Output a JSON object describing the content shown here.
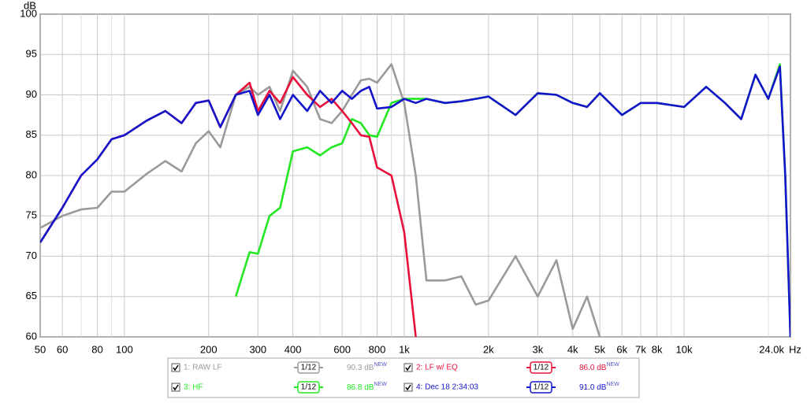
{
  "chart_data": {
    "type": "line",
    "y_label": "dB",
    "x_unit": "Hz",
    "xscale": "log",
    "grid": true,
    "xlim": [
      50,
      24000
    ],
    "ylim": [
      60,
      100
    ],
    "yticks": [
      60,
      65,
      70,
      75,
      80,
      85,
      90,
      95,
      100
    ],
    "xticks": [
      50,
      60,
      80,
      100,
      200,
      300,
      400,
      600,
      800,
      {
        "value": 1000,
        "label": "1k"
      },
      {
        "value": 2000,
        "label": "2k"
      },
      {
        "value": 3000,
        "label": "3k"
      },
      {
        "value": 4000,
        "label": "4k"
      },
      {
        "value": 5000,
        "label": "5k"
      },
      {
        "value": 6000,
        "label": "6k"
      },
      {
        "value": 7000,
        "label": "7k"
      },
      {
        "value": 8000,
        "label": "8k"
      },
      {
        "value": 10000,
        "label": "10k"
      },
      {
        "value": 24000,
        "label": "24.0k"
      }
    ],
    "minor_xticks": [
      70,
      90,
      500,
      700,
      900,
      9000,
      20000
    ],
    "x": [
      50,
      60,
      70,
      80,
      90,
      100,
      120,
      140,
      160,
      180,
      200,
      220,
      250,
      280,
      300,
      330,
      360,
      400,
      450,
      500,
      550,
      600,
      650,
      700,
      750,
      800,
      900,
      1000,
      1100,
      1200,
      1400,
      1600,
      1800,
      2000,
      2500,
      3000,
      3500,
      4000,
      4500,
      5000,
      6000,
      7000,
      8000,
      10000,
      12000,
      14000,
      16000,
      18000,
      20000,
      22000,
      23000,
      24000
    ],
    "series": [
      {
        "name": "1: RAW LF",
        "color": "#9a9a9a",
        "smoothing": "1/12",
        "level": "90.3 dB",
        "level_tag": "NEW",
        "values": [
          73.5,
          75,
          75.8,
          76,
          78,
          78,
          80.2,
          81.8,
          80.5,
          84,
          85.5,
          83.5,
          90,
          91,
          90,
          91,
          88,
          93,
          91,
          87,
          86.5,
          88,
          90,
          91.8,
          92,
          91.5,
          93.8,
          89,
          80,
          67,
          67,
          67.5,
          64,
          64.5,
          70,
          65,
          69.5,
          61,
          65,
          60,
          null,
          null,
          null,
          null,
          null,
          null,
          null,
          null,
          null,
          null,
          null,
          null
        ]
      },
      {
        "name": "3: HF",
        "color": "#22e822",
        "smoothing": "1/12",
        "level": "86.8 dB",
        "level_tag": "NEW",
        "values": [
          null,
          null,
          null,
          null,
          null,
          null,
          null,
          null,
          null,
          null,
          null,
          null,
          65,
          70.5,
          70.3,
          75,
          76,
          83,
          83.5,
          82.5,
          83.5,
          84,
          87,
          86.5,
          85,
          84.8,
          89,
          89.5,
          89.5,
          89.5,
          89,
          89.2,
          89.5,
          89.8,
          87.5,
          90.2,
          90,
          89,
          88.5,
          90.2,
          87.5,
          89,
          89,
          88.5,
          91,
          89,
          87,
          92.5,
          89.5,
          93.8,
          80,
          60
        ]
      },
      {
        "name": "2: LF w/ EQ",
        "color": "#e8103a",
        "smoothing": "1/12",
        "level": "86.0 dB",
        "level_tag": "NEW",
        "values": [
          71.7,
          76,
          80,
          82,
          84.5,
          85,
          86.8,
          88,
          86.5,
          89,
          89.3,
          86,
          90,
          91.5,
          88,
          90.5,
          89,
          92.2,
          90,
          88.5,
          89.5,
          88,
          86.5,
          85,
          84.8,
          81,
          80,
          73,
          60,
          null,
          null,
          null,
          null,
          null,
          null,
          null,
          null,
          null,
          null,
          null,
          null,
          null,
          null,
          null,
          null,
          null,
          null,
          null,
          null,
          null,
          null,
          null
        ]
      },
      {
        "name": "4: Dec 18 2:34:03",
        "color": "#1414cc",
        "smoothing": "1/12",
        "level": "91.0 dB",
        "level_tag": "NEW",
        "values": [
          71.7,
          76,
          80,
          82,
          84.5,
          85,
          86.8,
          88,
          86.5,
          89,
          89.3,
          86,
          90,
          90.5,
          87.5,
          90,
          87,
          90,
          88,
          90.5,
          89,
          90.5,
          89.5,
          90.5,
          91,
          88.3,
          88.5,
          89.5,
          89,
          89.5,
          89,
          89.2,
          89.5,
          89.8,
          87.5,
          90.2,
          90,
          89,
          88.5,
          90.2,
          87.5,
          89,
          89,
          88.5,
          91,
          89,
          87,
          92.5,
          89.5,
          93.5,
          80,
          60
        ]
      }
    ]
  }
}
